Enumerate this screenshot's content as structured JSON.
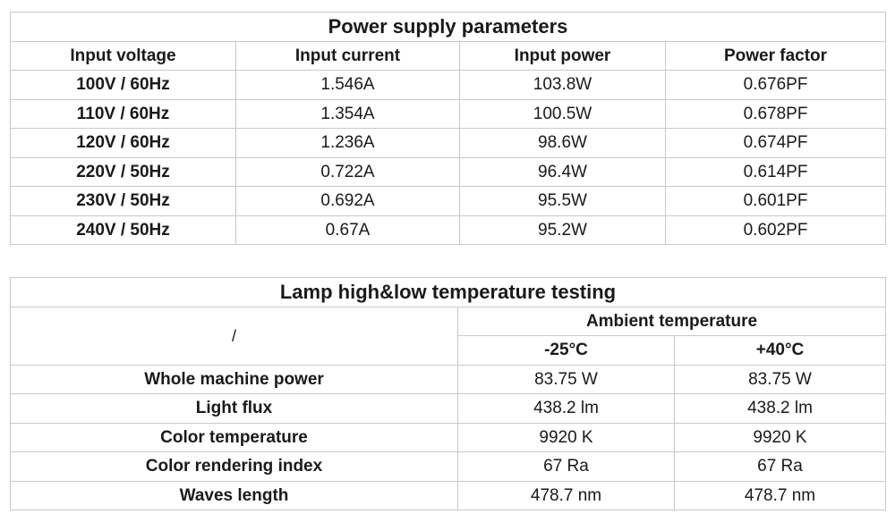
{
  "power_table": {
    "title": "Power supply parameters",
    "headers": [
      "Input voltage",
      "Input current",
      "Input power",
      "Power factor"
    ],
    "rows": [
      [
        "100V / 60Hz",
        "1.546A",
        "103.8W",
        "0.676PF"
      ],
      [
        "110V / 60Hz",
        "1.354A",
        "100.5W",
        "0.678PF"
      ],
      [
        "120V / 60Hz",
        "1.236A",
        "98.6W",
        "0.674PF"
      ],
      [
        "220V / 50Hz",
        "0.722A",
        "96.4W",
        "0.614PF"
      ],
      [
        "230V / 50Hz",
        "0.692A",
        "95.5W",
        "0.601PF"
      ],
      [
        "240V / 50Hz",
        "0.67A",
        "95.2W",
        "0.602PF"
      ]
    ]
  },
  "temp_table": {
    "title": "Lamp high&low temperature testing",
    "corner": "/",
    "group_header": "Ambient temperature",
    "columns": [
      "-25°C",
      "+40°C"
    ],
    "rows": [
      [
        "Whole machine power",
        "83.75 W",
        "83.75 W"
      ],
      [
        "Light flux",
        "438.2 lm",
        "438.2 lm"
      ],
      [
        "Color temperature",
        "9920 K",
        "9920 K"
      ],
      [
        "Color rendering index",
        "67 Ra",
        "67 Ra"
      ],
      [
        "Waves length",
        "478.7 nm",
        "478.7 nm"
      ]
    ]
  }
}
